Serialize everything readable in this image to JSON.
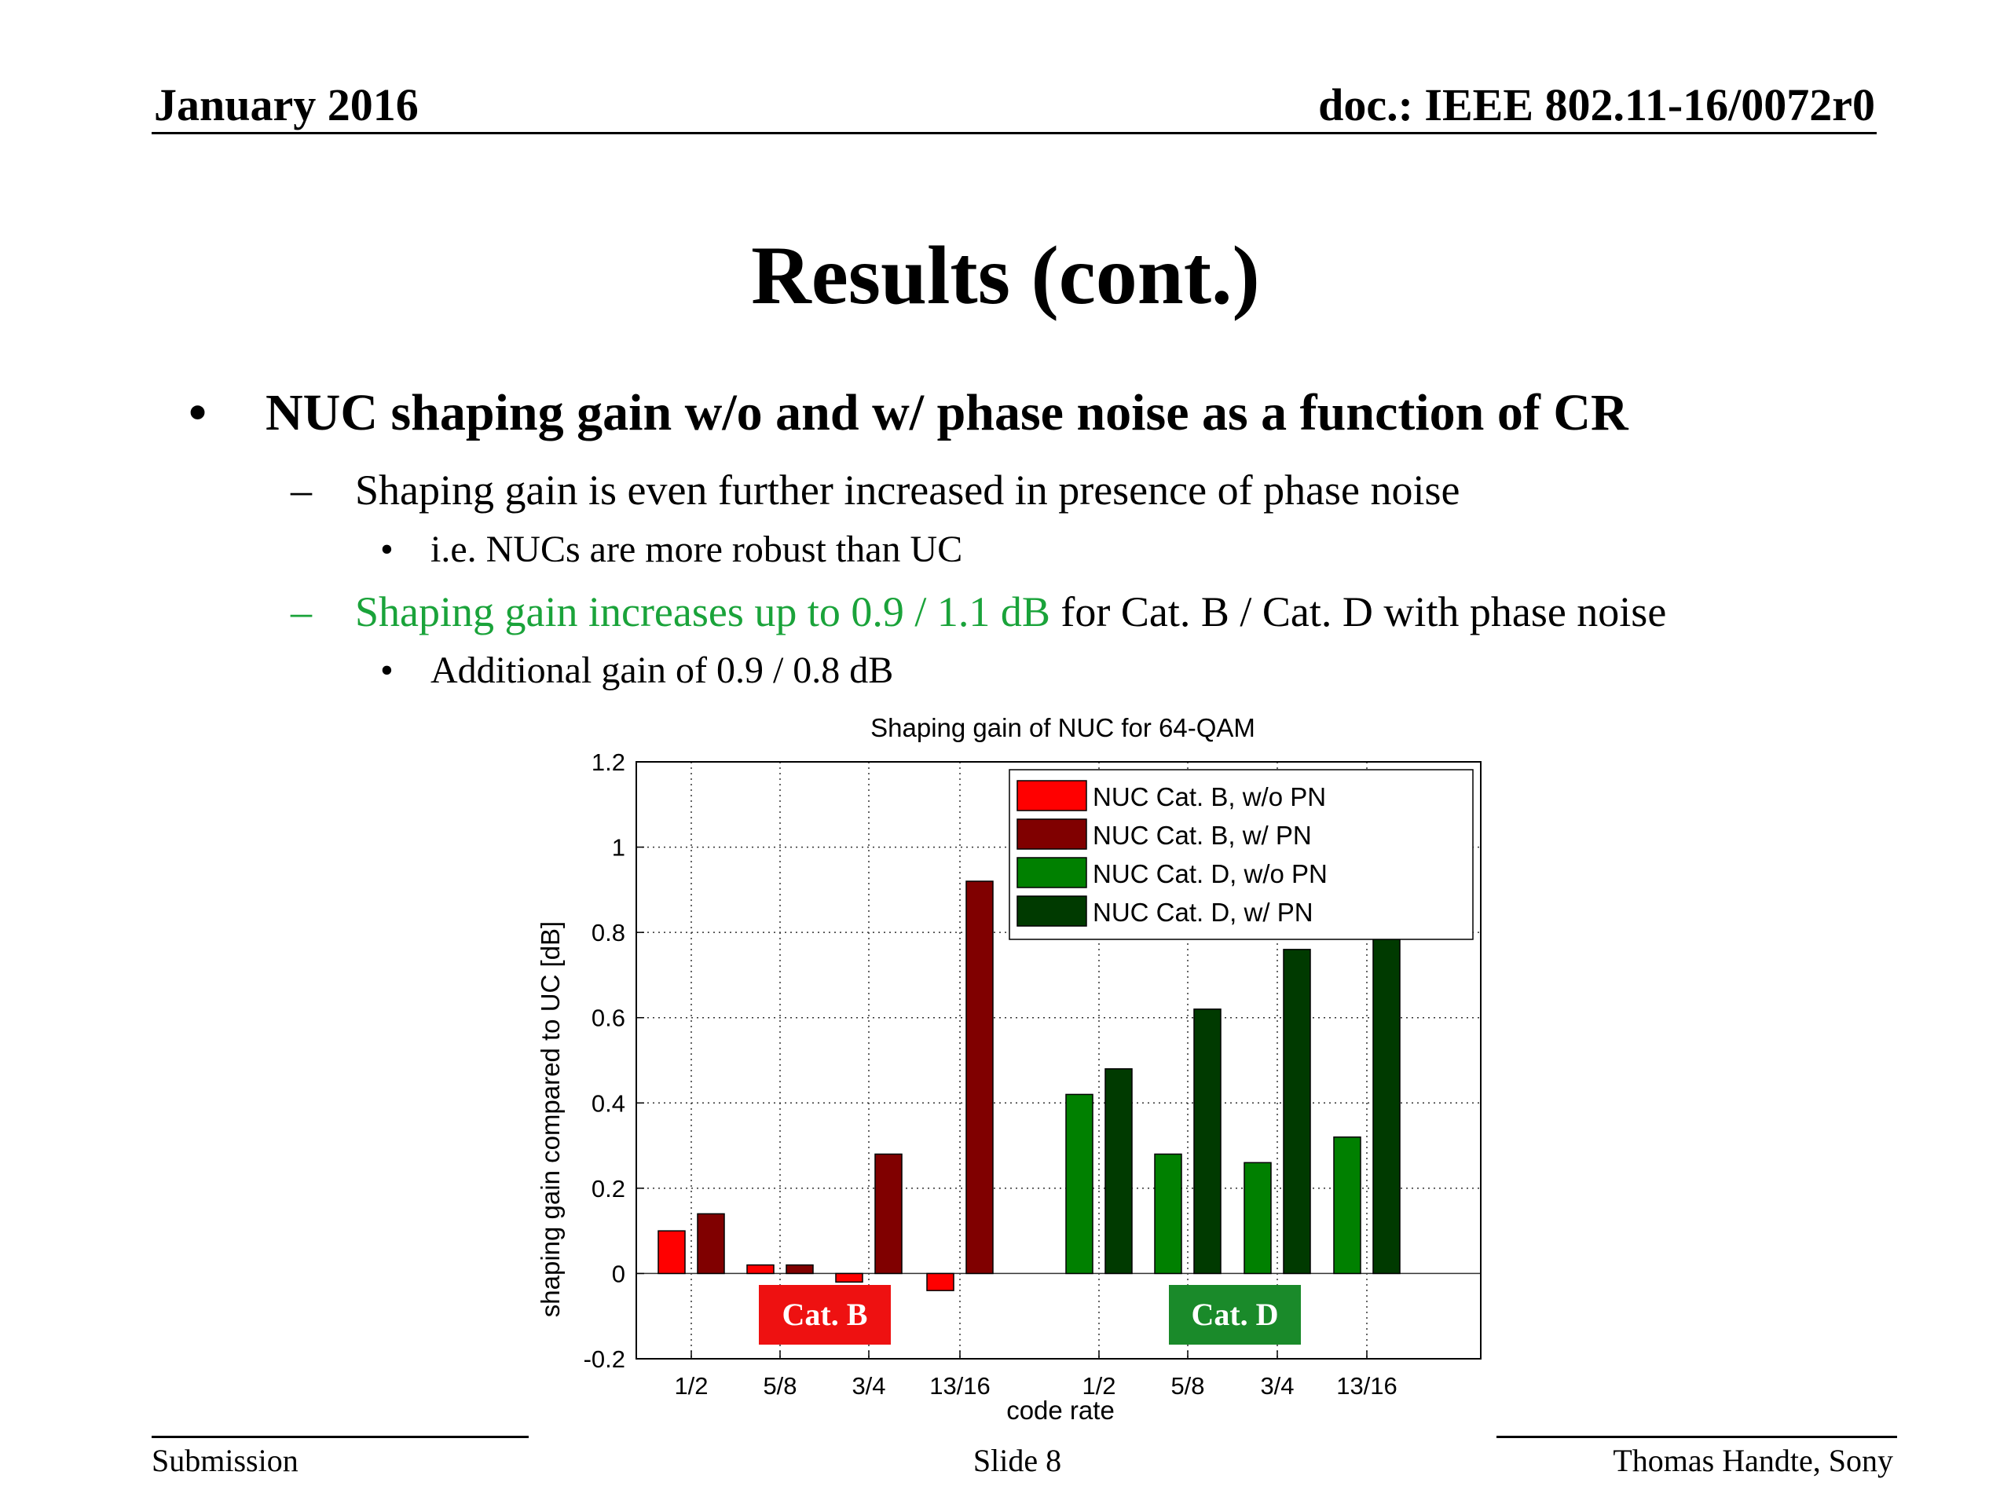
{
  "header": {
    "date": "January 2016",
    "doc_id": "doc.: IEEE 802.11-16/0072r0"
  },
  "title": "Results (cont.)",
  "bullets": {
    "b1": "NUC shaping gain w/o and w/ phase noise as a function of CR",
    "b1_marker": "•",
    "b2a": "Shaping gain is even further increased in presence of phase noise",
    "b2_marker": "–",
    "b3a": "i.e. NUCs are more robust than UC",
    "b3_marker": "•",
    "b2b_green": "Shaping gain increases up to 0.9 / 1.1 dB",
    "b2b_rest": " for Cat. B / Cat. D with phase noise",
    "b3b": "Additional gain of 0.9 / 0.8 dB"
  },
  "chart_labels": {
    "cat_b": "Cat. B",
    "cat_d": "Cat. D"
  },
  "colors": {
    "nuc_b_wo": "#ff0000",
    "nuc_b_w": "#800000",
    "nuc_d_wo": "#008000",
    "nuc_d_w": "#003a00",
    "cat_b_box": "#ee1111",
    "cat_d_box": "#1a8a2a",
    "green_text": "#1aa33a"
  },
  "chart_data": {
    "type": "bar",
    "title": "Shaping gain of NUC for 64-QAM",
    "xlabel": "code rate",
    "ylabel": "shaping gain compared to UC [dB]",
    "ylim": [
      -0.2,
      1.2
    ],
    "yticks": [
      "-0.2",
      "0",
      "0.2",
      "0.4",
      "0.6",
      "0.8",
      "1",
      "1.2"
    ],
    "categories": [
      "1/2",
      "5/8",
      "3/4",
      "13/16",
      "1/2",
      "5/8",
      "3/4",
      "13/16"
    ],
    "series": [
      {
        "name": "NUC Cat. B, w/o PN",
        "color": "#ff0000",
        "values": [
          0.1,
          0.02,
          -0.02,
          -0.04,
          null,
          null,
          null,
          null
        ]
      },
      {
        "name": "NUC Cat. B, w/ PN",
        "color": "#800000",
        "values": [
          0.14,
          0.02,
          0.28,
          0.92,
          null,
          null,
          null,
          null
        ]
      },
      {
        "name": "NUC Cat. D, w/o PN",
        "color": "#008000",
        "values": [
          null,
          null,
          null,
          null,
          0.42,
          0.28,
          0.26,
          0.32
        ]
      },
      {
        "name": "NUC Cat. D, w/ PN",
        "color": "#003a00",
        "values": [
          null,
          null,
          null,
          null,
          0.48,
          0.62,
          0.76,
          1.08
        ]
      }
    ],
    "grid": true,
    "legend_position": "top-right"
  },
  "footer": {
    "left": "Submission",
    "center": "Slide 8",
    "right": "Thomas Handte, Sony"
  }
}
